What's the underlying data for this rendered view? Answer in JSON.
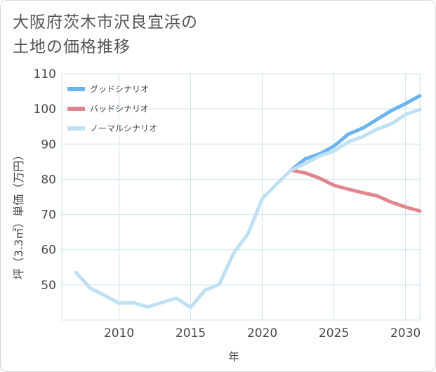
{
  "title_lines": [
    "大阪府茨木市沢良宜浜の",
    "土地の価格推移"
  ],
  "colors": {
    "good": "#6cb4ef",
    "bad": "#e0868f",
    "normal": "#bfe0f2",
    "grid": "#cfe3ee"
  },
  "chart_data": {
    "type": "line",
    "title": "大阪府茨木市沢良宜浜の土地の価格推移",
    "xlabel": "年",
    "ylabel": "坪（3.3㎡）単価（万円）",
    "xlim": [
      2006,
      2031
    ],
    "ylim": [
      40,
      110
    ],
    "xticks": [
      2010,
      2015,
      2020,
      2025,
      2030
    ],
    "yticks": [
      50,
      60,
      70,
      80,
      90,
      100,
      110
    ],
    "grid": true,
    "legend_position": "top-left",
    "series": [
      {
        "name": "グッドシナリオ",
        "color": "#6cb4ef",
        "x": [
          2022,
          2023,
          2024,
          2025,
          2026,
          2027,
          2028,
          2029,
          2030,
          2031
        ],
        "y": [
          82.6,
          85.8,
          87.2,
          89.4,
          92.8,
          94.5,
          97.0,
          99.5,
          101.5,
          103.7
        ]
      },
      {
        "name": "バッドシナリオ",
        "color": "#e0868f",
        "x": [
          2022,
          2023,
          2024,
          2025,
          2026,
          2027,
          2028,
          2029,
          2030,
          2031
        ],
        "y": [
          82.6,
          81.8,
          80.3,
          78.3,
          77.2,
          76.2,
          75.3,
          73.5,
          72.1,
          71.0
        ]
      },
      {
        "name": "ノーマルシナリオ",
        "color": "#bfe0f2",
        "x": [
          2007,
          2008,
          2009,
          2010,
          2011,
          2012,
          2013,
          2014,
          2015,
          2016,
          2017,
          2018,
          2019,
          2020,
          2021,
          2022,
          2023,
          2024,
          2025,
          2026,
          2027,
          2028,
          2029,
          2030,
          2031
        ],
        "y": [
          53.5,
          49.0,
          47.0,
          44.8,
          44.9,
          43.7,
          45.0,
          46.2,
          43.6,
          48.5,
          50.2,
          59.0,
          64.5,
          74.5,
          78.6,
          82.6,
          84.5,
          86.6,
          88.0,
          90.6,
          92.1,
          94.2,
          95.7,
          98.4,
          99.8
        ]
      }
    ]
  }
}
